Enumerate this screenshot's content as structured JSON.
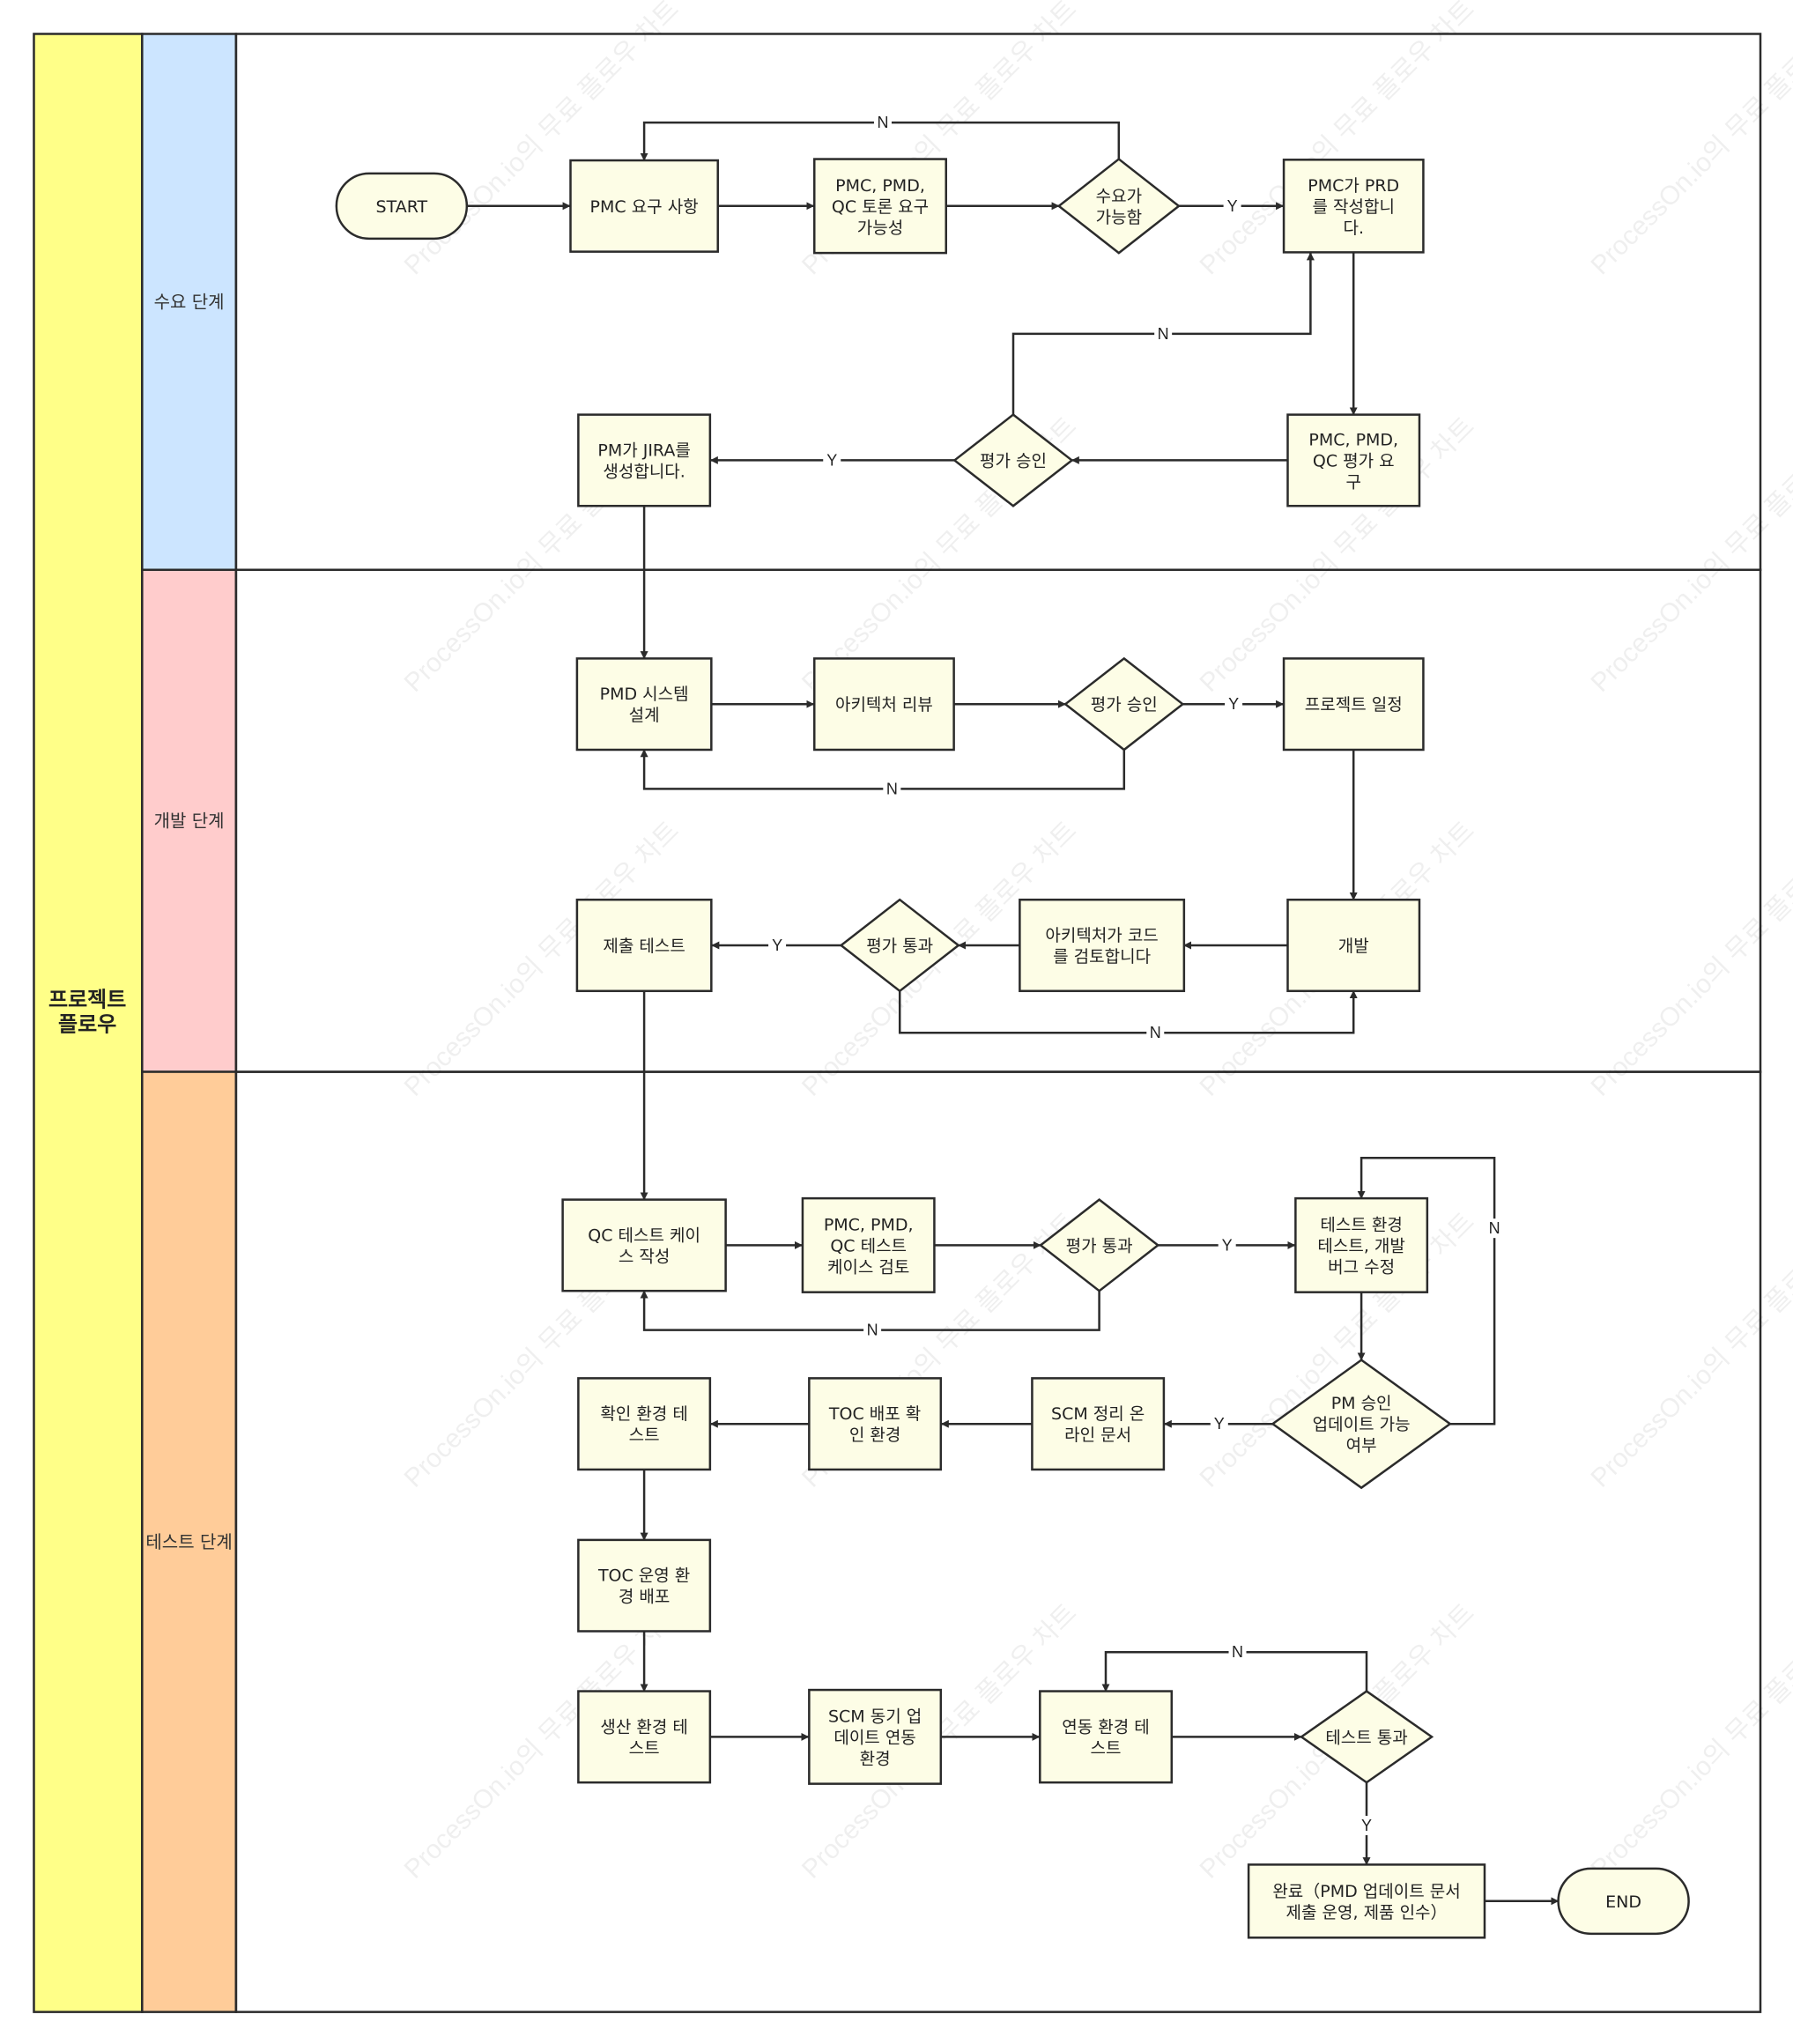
{
  "pool": {
    "label_lines": [
      "프로젝트",
      "플로우"
    ],
    "color": "#ffff88"
  },
  "lanes": [
    {
      "id": "demand",
      "label": "수요 단계",
      "color": "#cce5ff"
    },
    {
      "id": "dev",
      "label": "개발 단계",
      "color": "#ffcccc"
    },
    {
      "id": "test",
      "label": "테스트 단계",
      "color": "#ffcc99"
    }
  ],
  "watermark": "ProcessOn.io의 무료 플로우 차트",
  "node_fill": "#fdfde6",
  "nodes": [
    {
      "id": "start",
      "shape": "terminal",
      "lines": [
        "START"
      ]
    },
    {
      "id": "pmc_req",
      "shape": "process",
      "lines": [
        "PMC 요구 사항"
      ]
    },
    {
      "id": "pmc_pmd_qc_disc",
      "shape": "process",
      "lines": [
        "PMC, PMD,",
        "QC 토론 요구",
        "가능성"
      ]
    },
    {
      "id": "demand_ok",
      "shape": "decision",
      "lines": [
        "수요가",
        "가능함"
      ]
    },
    {
      "id": "pmc_prd",
      "shape": "process",
      "lines": [
        "PMC가 PRD",
        "를 작성합니",
        "다."
      ]
    },
    {
      "id": "eval_req",
      "shape": "process",
      "lines": [
        "PMC, PMD,",
        "QC 평가 요",
        "구"
      ]
    },
    {
      "id": "eval_ok1",
      "shape": "decision",
      "lines": [
        "평가 승인"
      ]
    },
    {
      "id": "pm_jira",
      "shape": "process",
      "lines": [
        "PM가 JIRA를",
        "생성합니다."
      ]
    },
    {
      "id": "pmd_sys",
      "shape": "process",
      "lines": [
        "PMD 시스템",
        "설계"
      ]
    },
    {
      "id": "arch_review",
      "shape": "process",
      "lines": [
        "아키텍처 리뷰"
      ]
    },
    {
      "id": "eval_ok2",
      "shape": "decision",
      "lines": [
        "평가 승인"
      ]
    },
    {
      "id": "proj_sched",
      "shape": "process",
      "lines": [
        "프로젝트 일정"
      ]
    },
    {
      "id": "develop",
      "shape": "process",
      "lines": [
        "개발"
      ]
    },
    {
      "id": "arch_code",
      "shape": "process",
      "lines": [
        "아키텍처가 코드",
        "를 검토합니다"
      ]
    },
    {
      "id": "eval_pass1",
      "shape": "decision",
      "lines": [
        "평가 통과"
      ]
    },
    {
      "id": "submit_test",
      "shape": "process",
      "lines": [
        "제출 테스트"
      ]
    },
    {
      "id": "qc_case",
      "shape": "process",
      "lines": [
        "QC 테스트 케이",
        "스 작성"
      ]
    },
    {
      "id": "case_review",
      "shape": "process",
      "lines": [
        "PMC, PMD,",
        "QC 테스트",
        "케이스 검토"
      ]
    },
    {
      "id": "eval_pass2",
      "shape": "decision",
      "lines": [
        "평가 통과"
      ]
    },
    {
      "id": "test_env",
      "shape": "process",
      "lines": [
        "테스트 환경",
        "테스트, 개발",
        "버그 수정"
      ]
    },
    {
      "id": "pm_approve",
      "shape": "decision",
      "lines": [
        "PM 승인",
        "업데이트 가능",
        "여부"
      ]
    },
    {
      "id": "scm_doc",
      "shape": "process",
      "lines": [
        "SCM 정리 온",
        "라인 문서"
      ]
    },
    {
      "id": "toc_deploy",
      "shape": "process",
      "lines": [
        "TOC 배포 확",
        "인 환경"
      ]
    },
    {
      "id": "confirm_env",
      "shape": "process",
      "lines": [
        "확인 환경 테",
        "스트"
      ]
    },
    {
      "id": "toc_ops",
      "shape": "process",
      "lines": [
        "TOC 운영 환",
        "경 배포"
      ]
    },
    {
      "id": "prod_env",
      "shape": "process",
      "lines": [
        "생산 환경 테",
        "스트"
      ]
    },
    {
      "id": "scm_sync",
      "shape": "process",
      "lines": [
        "SCM 동기 업",
        "데이트 연동",
        "환경"
      ]
    },
    {
      "id": "link_env",
      "shape": "process",
      "lines": [
        "연동 환경 테",
        "스트"
      ]
    },
    {
      "id": "test_pass",
      "shape": "decision",
      "lines": [
        "테스트 통과"
      ]
    },
    {
      "id": "done",
      "shape": "process",
      "lines": [
        "완료（PMD 업데이트 문서",
        "제출 운영, 제품 인수）"
      ]
    },
    {
      "id": "end",
      "shape": "terminal",
      "lines": [
        "END"
      ]
    }
  ],
  "edges": [
    {
      "id": "e_start_req",
      "label": ""
    },
    {
      "id": "e_req_disc",
      "label": ""
    },
    {
      "id": "e_disc_dec",
      "label": ""
    },
    {
      "id": "e_dec_prd",
      "label": "Y"
    },
    {
      "id": "e_dec_req_n",
      "label": "N"
    },
    {
      "id": "e_prd_eval",
      "label": ""
    },
    {
      "id": "e_eval_dec",
      "label": ""
    },
    {
      "id": "e_dec_prd_n",
      "label": "N"
    },
    {
      "id": "e_dec_jira",
      "label": "Y"
    },
    {
      "id": "e_jira_sys",
      "label": ""
    },
    {
      "id": "e_sys_arch",
      "label": ""
    },
    {
      "id": "e_arch_dec",
      "label": ""
    },
    {
      "id": "e_dec_sched",
      "label": "Y"
    },
    {
      "id": "e_dec_sys_n",
      "label": "N"
    },
    {
      "id": "e_sched_dev",
      "label": ""
    },
    {
      "id": "e_dev_code",
      "label": ""
    },
    {
      "id": "e_code_dec",
      "label": ""
    },
    {
      "id": "e_dec_submit",
      "label": "Y"
    },
    {
      "id": "e_dec_dev_n",
      "label": "N"
    },
    {
      "id": "e_submit_qc",
      "label": ""
    },
    {
      "id": "e_qc_review",
      "label": ""
    },
    {
      "id": "e_review_dec",
      "label": ""
    },
    {
      "id": "e_dec_testenv",
      "label": "Y"
    },
    {
      "id": "e_dec_qc_n",
      "label": "N"
    },
    {
      "id": "e_testenv_pm",
      "label": ""
    },
    {
      "id": "e_pm_testenv_n",
      "label": "N"
    },
    {
      "id": "e_pm_scm",
      "label": "Y"
    },
    {
      "id": "e_scm_toc",
      "label": ""
    },
    {
      "id": "e_toc_confirm",
      "label": ""
    },
    {
      "id": "e_confirm_ops",
      "label": ""
    },
    {
      "id": "e_ops_prod",
      "label": ""
    },
    {
      "id": "e_prod_sync",
      "label": ""
    },
    {
      "id": "e_sync_link",
      "label": ""
    },
    {
      "id": "e_link_pass",
      "label": ""
    },
    {
      "id": "e_pass_link_n",
      "label": "N"
    },
    {
      "id": "e_pass_done",
      "label": "Y"
    },
    {
      "id": "e_done_end",
      "label": ""
    }
  ]
}
